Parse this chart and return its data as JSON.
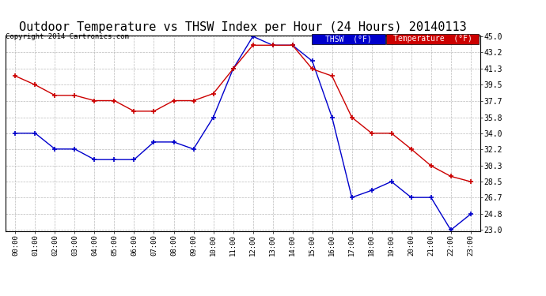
{
  "title": "Outdoor Temperature vs THSW Index per Hour (24 Hours) 20140113",
  "copyright": "Copyright 2014 Cartronics.com",
  "hours": [
    "00:00",
    "01:00",
    "02:00",
    "03:00",
    "04:00",
    "05:00",
    "06:00",
    "07:00",
    "08:00",
    "09:00",
    "10:00",
    "11:00",
    "12:00",
    "13:00",
    "14:00",
    "15:00",
    "16:00",
    "17:00",
    "18:00",
    "19:00",
    "20:00",
    "21:00",
    "22:00",
    "23:00"
  ],
  "temperature": [
    40.5,
    39.5,
    38.3,
    38.3,
    37.7,
    37.7,
    36.5,
    36.5,
    37.7,
    37.7,
    38.5,
    41.3,
    44.0,
    44.0,
    44.0,
    41.3,
    40.5,
    35.8,
    34.0,
    34.0,
    32.2,
    30.3,
    29.1,
    28.5
  ],
  "thsw": [
    34.0,
    34.0,
    32.2,
    32.2,
    31.0,
    31.0,
    31.0,
    33.0,
    33.0,
    32.2,
    35.8,
    41.3,
    45.0,
    44.0,
    44.0,
    42.2,
    35.8,
    26.7,
    27.5,
    28.5,
    26.7,
    26.7,
    23.0,
    24.8
  ],
  "ylim_min": 23.0,
  "ylim_max": 45.0,
  "yticks": [
    23.0,
    24.8,
    26.7,
    28.5,
    30.3,
    32.2,
    34.0,
    35.8,
    37.7,
    39.5,
    41.3,
    43.2,
    45.0
  ],
  "temp_color": "#cc0000",
  "thsw_color": "#0000cc",
  "background_color": "#ffffff",
  "grid_color": "#aaaaaa",
  "title_fontsize": 11,
  "legend_thsw_bg": "#0000cc",
  "legend_temp_bg": "#cc0000"
}
